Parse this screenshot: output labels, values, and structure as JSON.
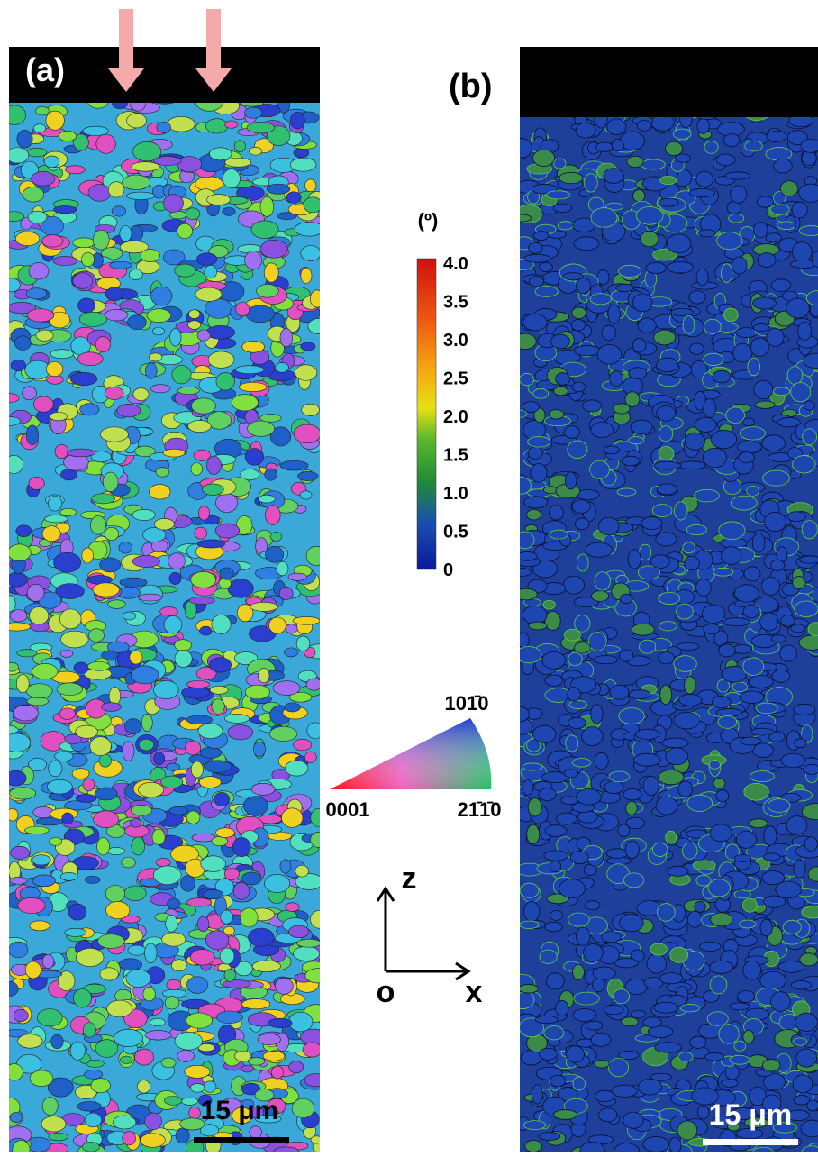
{
  "panels": [
    {
      "label": "(a)",
      "scale_bar": "15 μm"
    },
    {
      "label": "(b)",
      "scale_bar": "15 μm"
    }
  ],
  "colorbar": {
    "unit": "(º)",
    "ticks": [
      "4.0",
      "3.5",
      "3.0",
      "2.5",
      "2.0",
      "1.5",
      "1.0",
      "0.5",
      "0"
    ]
  },
  "ipf_key": {
    "corners": [
      "101̄0",
      "0001",
      "21̄1̄0"
    ]
  },
  "axes": {
    "vertical": "z",
    "horizontal": "x",
    "origin": "o"
  }
}
